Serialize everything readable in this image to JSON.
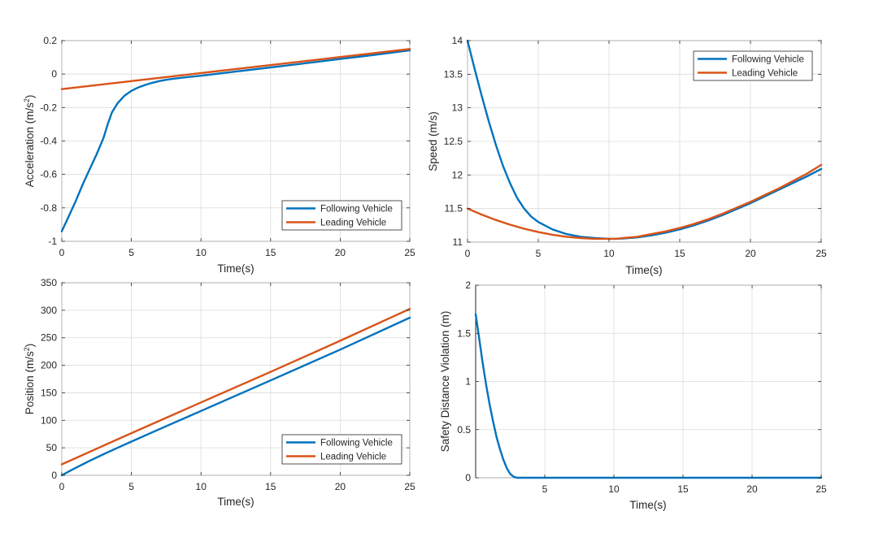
{
  "figure": {
    "background": "#ffffff"
  },
  "chart_data": [
    {
      "id": "acc",
      "type": "line",
      "title": "",
      "xlabel": "Time(s)",
      "ylabel": "Acceleration (m/s^2)",
      "ylabel_parts": {
        "base": "Acceleration (m/s",
        "sup": "2",
        "tail": ")"
      },
      "xlim": [
        0,
        25
      ],
      "ylim": [
        -1,
        0.2
      ],
      "xticks": [
        0,
        5,
        10,
        15,
        20,
        25
      ],
      "xtick_labels": [
        "0",
        "5",
        "10",
        "15",
        "20",
        "25"
      ],
      "yticks": [
        -1,
        -0.8,
        -0.6,
        -0.4,
        -0.2,
        0,
        0.2
      ],
      "ytick_labels": [
        "-1",
        "-0.8",
        "-0.6",
        "-0.4",
        "-0.2",
        "0",
        "0.2"
      ],
      "grid": true,
      "legend": "bottom-right",
      "series": [
        {
          "name": "Following Vehicle",
          "color": "#0072BD",
          "x": [
            0,
            0.5,
            1,
            1.5,
            2,
            2.5,
            3,
            3.3,
            3.6,
            4,
            4.5,
            5,
            5.5,
            6,
            6.5,
            7,
            7.5,
            8,
            9,
            10,
            12,
            14,
            16,
            18,
            20,
            22,
            25
          ],
          "y": [
            -0.94,
            -0.85,
            -0.76,
            -0.66,
            -0.57,
            -0.48,
            -0.38,
            -0.3,
            -0.23,
            -0.175,
            -0.13,
            -0.1,
            -0.08,
            -0.065,
            -0.052,
            -0.042,
            -0.034,
            -0.028,
            -0.018,
            -0.01,
            0.01,
            0.03,
            0.05,
            0.07,
            0.09,
            0.11,
            0.142
          ]
        },
        {
          "name": "Leading Vehicle",
          "color": "#D95319",
          "x": [
            0,
            5,
            10,
            15,
            20,
            25
          ],
          "y": [
            -0.09,
            -0.042,
            0.006,
            0.054,
            0.102,
            0.15
          ]
        }
      ]
    },
    {
      "id": "speed",
      "type": "line",
      "title": "",
      "xlabel": "Time(s)",
      "ylabel": "Speed (m/s)",
      "xlim": [
        0,
        25
      ],
      "ylim": [
        11,
        14
      ],
      "xticks": [
        0,
        5,
        10,
        15,
        20,
        25
      ],
      "xtick_labels": [
        "0",
        "5",
        "10",
        "15",
        "20",
        "25"
      ],
      "yticks": [
        11,
        11.5,
        12,
        12.5,
        13,
        13.5,
        14
      ],
      "ytick_labels": [
        "11",
        "11.5",
        "12",
        "12.5",
        "13",
        "13.5",
        "14"
      ],
      "grid": true,
      "legend": "top-right",
      "series": [
        {
          "name": "Following Vehicle",
          "color": "#0072BD",
          "x": [
            0,
            0.5,
            1,
            1.5,
            2,
            2.5,
            3,
            3.5,
            4,
            4.5,
            5,
            6,
            7,
            8,
            9,
            10,
            10.5,
            11,
            12,
            13,
            14,
            15,
            16,
            17,
            18,
            19,
            20,
            21,
            22,
            23,
            24,
            25
          ],
          "y": [
            14.0,
            13.58,
            13.18,
            12.8,
            12.45,
            12.14,
            11.88,
            11.66,
            11.5,
            11.38,
            11.3,
            11.19,
            11.12,
            11.08,
            11.06,
            11.05,
            11.05,
            11.055,
            11.07,
            11.1,
            11.14,
            11.19,
            11.25,
            11.32,
            11.4,
            11.49,
            11.58,
            11.68,
            11.78,
            11.88,
            11.98,
            12.09
          ]
        },
        {
          "name": "Leading Vehicle",
          "color": "#D95319",
          "x": [
            0,
            1,
            2,
            3,
            4,
            5,
            6,
            7,
            8,
            9,
            10,
            10.5,
            11,
            12,
            13,
            14,
            15,
            16,
            17,
            18,
            19,
            20,
            21,
            22,
            23,
            24,
            25
          ],
          "y": [
            11.5,
            11.41,
            11.33,
            11.26,
            11.2,
            11.15,
            11.11,
            11.08,
            11.06,
            11.05,
            11.05,
            11.05,
            11.06,
            11.08,
            11.12,
            11.16,
            11.21,
            11.27,
            11.34,
            11.42,
            11.51,
            11.6,
            11.7,
            11.8,
            11.91,
            12.02,
            12.15
          ]
        }
      ]
    },
    {
      "id": "pos",
      "type": "line",
      "title": "",
      "xlabel": "Time(s)",
      "ylabel": "Position (m/s^2)",
      "ylabel_parts": {
        "base": "Position (m/s",
        "sup": "2",
        "tail": ")"
      },
      "xlim": [
        0,
        25
      ],
      "ylim": [
        0,
        350
      ],
      "xticks": [
        0,
        5,
        10,
        15,
        20,
        25
      ],
      "xtick_labels": [
        "0",
        "5",
        "10",
        "15",
        "20",
        "25"
      ],
      "yticks": [
        0,
        50,
        100,
        150,
        200,
        250,
        300,
        350
      ],
      "ytick_labels": [
        "0",
        "50",
        "100",
        "150",
        "200",
        "250",
        "300",
        "350"
      ],
      "grid": true,
      "legend": "bottom-right",
      "series": [
        {
          "name": "Following Vehicle",
          "color": "#0072BD",
          "x": [
            0,
            0.5,
            1,
            1.5,
            2,
            3,
            4,
            5,
            7,
            10,
            15,
            20,
            25
          ],
          "y": [
            0,
            6.9,
            13.6,
            20.0,
            26.3,
            38.4,
            49.9,
            61.3,
            83.7,
            117,
            172.5,
            228.5,
            286.5
          ]
        },
        {
          "name": "Leading Vehicle",
          "color": "#D95319",
          "x": [
            0,
            5,
            10,
            15,
            20,
            25
          ],
          "y": [
            20,
            76.7,
            132.4,
            188.0,
            244.5,
            302.5
          ]
        }
      ]
    },
    {
      "id": "sdv",
      "type": "line",
      "title": "",
      "xlabel": "Time(s)",
      "ylabel": "Safety Distance Violation (m)",
      "xlim": [
        0,
        25
      ],
      "ylim": [
        0,
        2
      ],
      "xticks": [
        5,
        10,
        15,
        20,
        25
      ],
      "xtick_labels": [
        "5",
        "10",
        "15",
        "20",
        "25"
      ],
      "ytick_labels_text": [
        "0",
        "0.5",
        "1",
        "1.5",
        "2"
      ],
      "yticks": [
        0,
        0.5,
        1,
        1.5,
        2
      ],
      "ytick_labels": [
        "0",
        "0.5",
        "1",
        "1.5",
        "2"
      ],
      "grid": true,
      "legend": "none",
      "series": [
        {
          "name": "Safety Distance Violation",
          "color": "#0072BD",
          "x": [
            0,
            0.25,
            0.5,
            0.75,
            1,
            1.25,
            1.5,
            1.75,
            2,
            2.25,
            2.5,
            2.75,
            3,
            3.5,
            5,
            10,
            15,
            20,
            25
          ],
          "y": [
            1.7,
            1.45,
            1.2,
            0.97,
            0.77,
            0.59,
            0.43,
            0.3,
            0.19,
            0.1,
            0.04,
            0.01,
            0,
            0,
            0,
            0,
            0,
            0,
            0
          ]
        }
      ]
    }
  ]
}
